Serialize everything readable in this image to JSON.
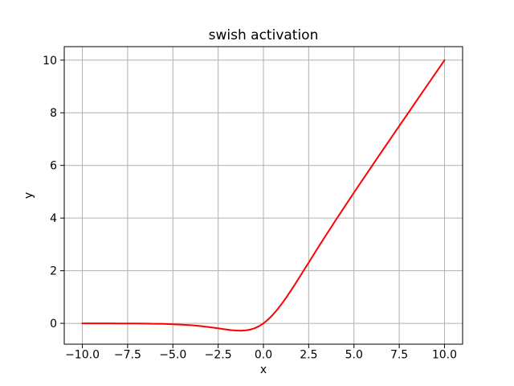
{
  "figure": {
    "background": "#ffffff",
    "text_color": "#000000",
    "axes_border_color": "#000000"
  },
  "chart_data": {
    "type": "line",
    "title": "swish activation",
    "xlabel": "x",
    "ylabel": "y",
    "xlim": [
      -11,
      11
    ],
    "ylim": [
      -0.792,
      10.513
    ],
    "grid": true,
    "grid_color": "#b0b0b0",
    "legend": "none",
    "xticks": [
      {
        "value": -10,
        "label": "−10.0"
      },
      {
        "value": -7.5,
        "label": "−7.5"
      },
      {
        "value": -5,
        "label": "−5.0"
      },
      {
        "value": -2.5,
        "label": "−2.5"
      },
      {
        "value": 0,
        "label": "0.0"
      },
      {
        "value": 2.5,
        "label": "2.5"
      },
      {
        "value": 5,
        "label": "5.0"
      },
      {
        "value": 7.5,
        "label": "7.5"
      },
      {
        "value": 10,
        "label": "10.0"
      }
    ],
    "yticks": [
      {
        "value": 0,
        "label": "0"
      },
      {
        "value": 2,
        "label": "2"
      },
      {
        "value": 4,
        "label": "4"
      },
      {
        "value": 6,
        "label": "6"
      },
      {
        "value": 8,
        "label": "8"
      },
      {
        "value": 10,
        "label": "10"
      }
    ],
    "series": [
      {
        "name": "swish",
        "color": "#ff0000",
        "line_width": 2,
        "x": [
          -10,
          -9.5,
          -9,
          -8.5,
          -8,
          -7.5,
          -7,
          -6.5,
          -6,
          -5.5,
          -5,
          -4.5,
          -4,
          -3.5,
          -3,
          -2.75,
          -2.5,
          -2.25,
          -2,
          -1.75,
          -1.5,
          -1.25,
          -1,
          -0.75,
          -0.5,
          -0.25,
          0,
          0.25,
          0.5,
          0.75,
          1,
          1.25,
          1.5,
          1.75,
          2,
          2.25,
          2.5,
          2.75,
          3,
          3.5,
          4,
          4.5,
          5,
          5.5,
          6,
          6.5,
          7,
          7.5,
          8,
          8.5,
          9,
          9.5,
          10
        ],
        "y": [
          -0.0005,
          -0.0007,
          -0.0011,
          -0.0017,
          -0.0027,
          -0.0041,
          -0.0064,
          -0.0098,
          -0.0148,
          -0.0225,
          -0.0335,
          -0.0494,
          -0.0719,
          -0.1026,
          -0.1423,
          -0.1652,
          -0.1896,
          -0.2145,
          -0.2384,
          -0.2591,
          -0.2736,
          -0.2784,
          -0.2689,
          -0.2406,
          -0.1888,
          -0.1095,
          0,
          0.1405,
          0.3112,
          0.5094,
          0.7311,
          0.9716,
          1.2264,
          1.4909,
          1.7616,
          2.0355,
          2.3104,
          2.5853,
          2.8577,
          3.3974,
          3.9281,
          4.4506,
          4.9665,
          5.4779,
          5.9852,
          6.4903,
          6.9936,
          7.4959,
          7.9973,
          8.4983,
          8.9989,
          9.4993,
          9.9995
        ]
      }
    ]
  }
}
